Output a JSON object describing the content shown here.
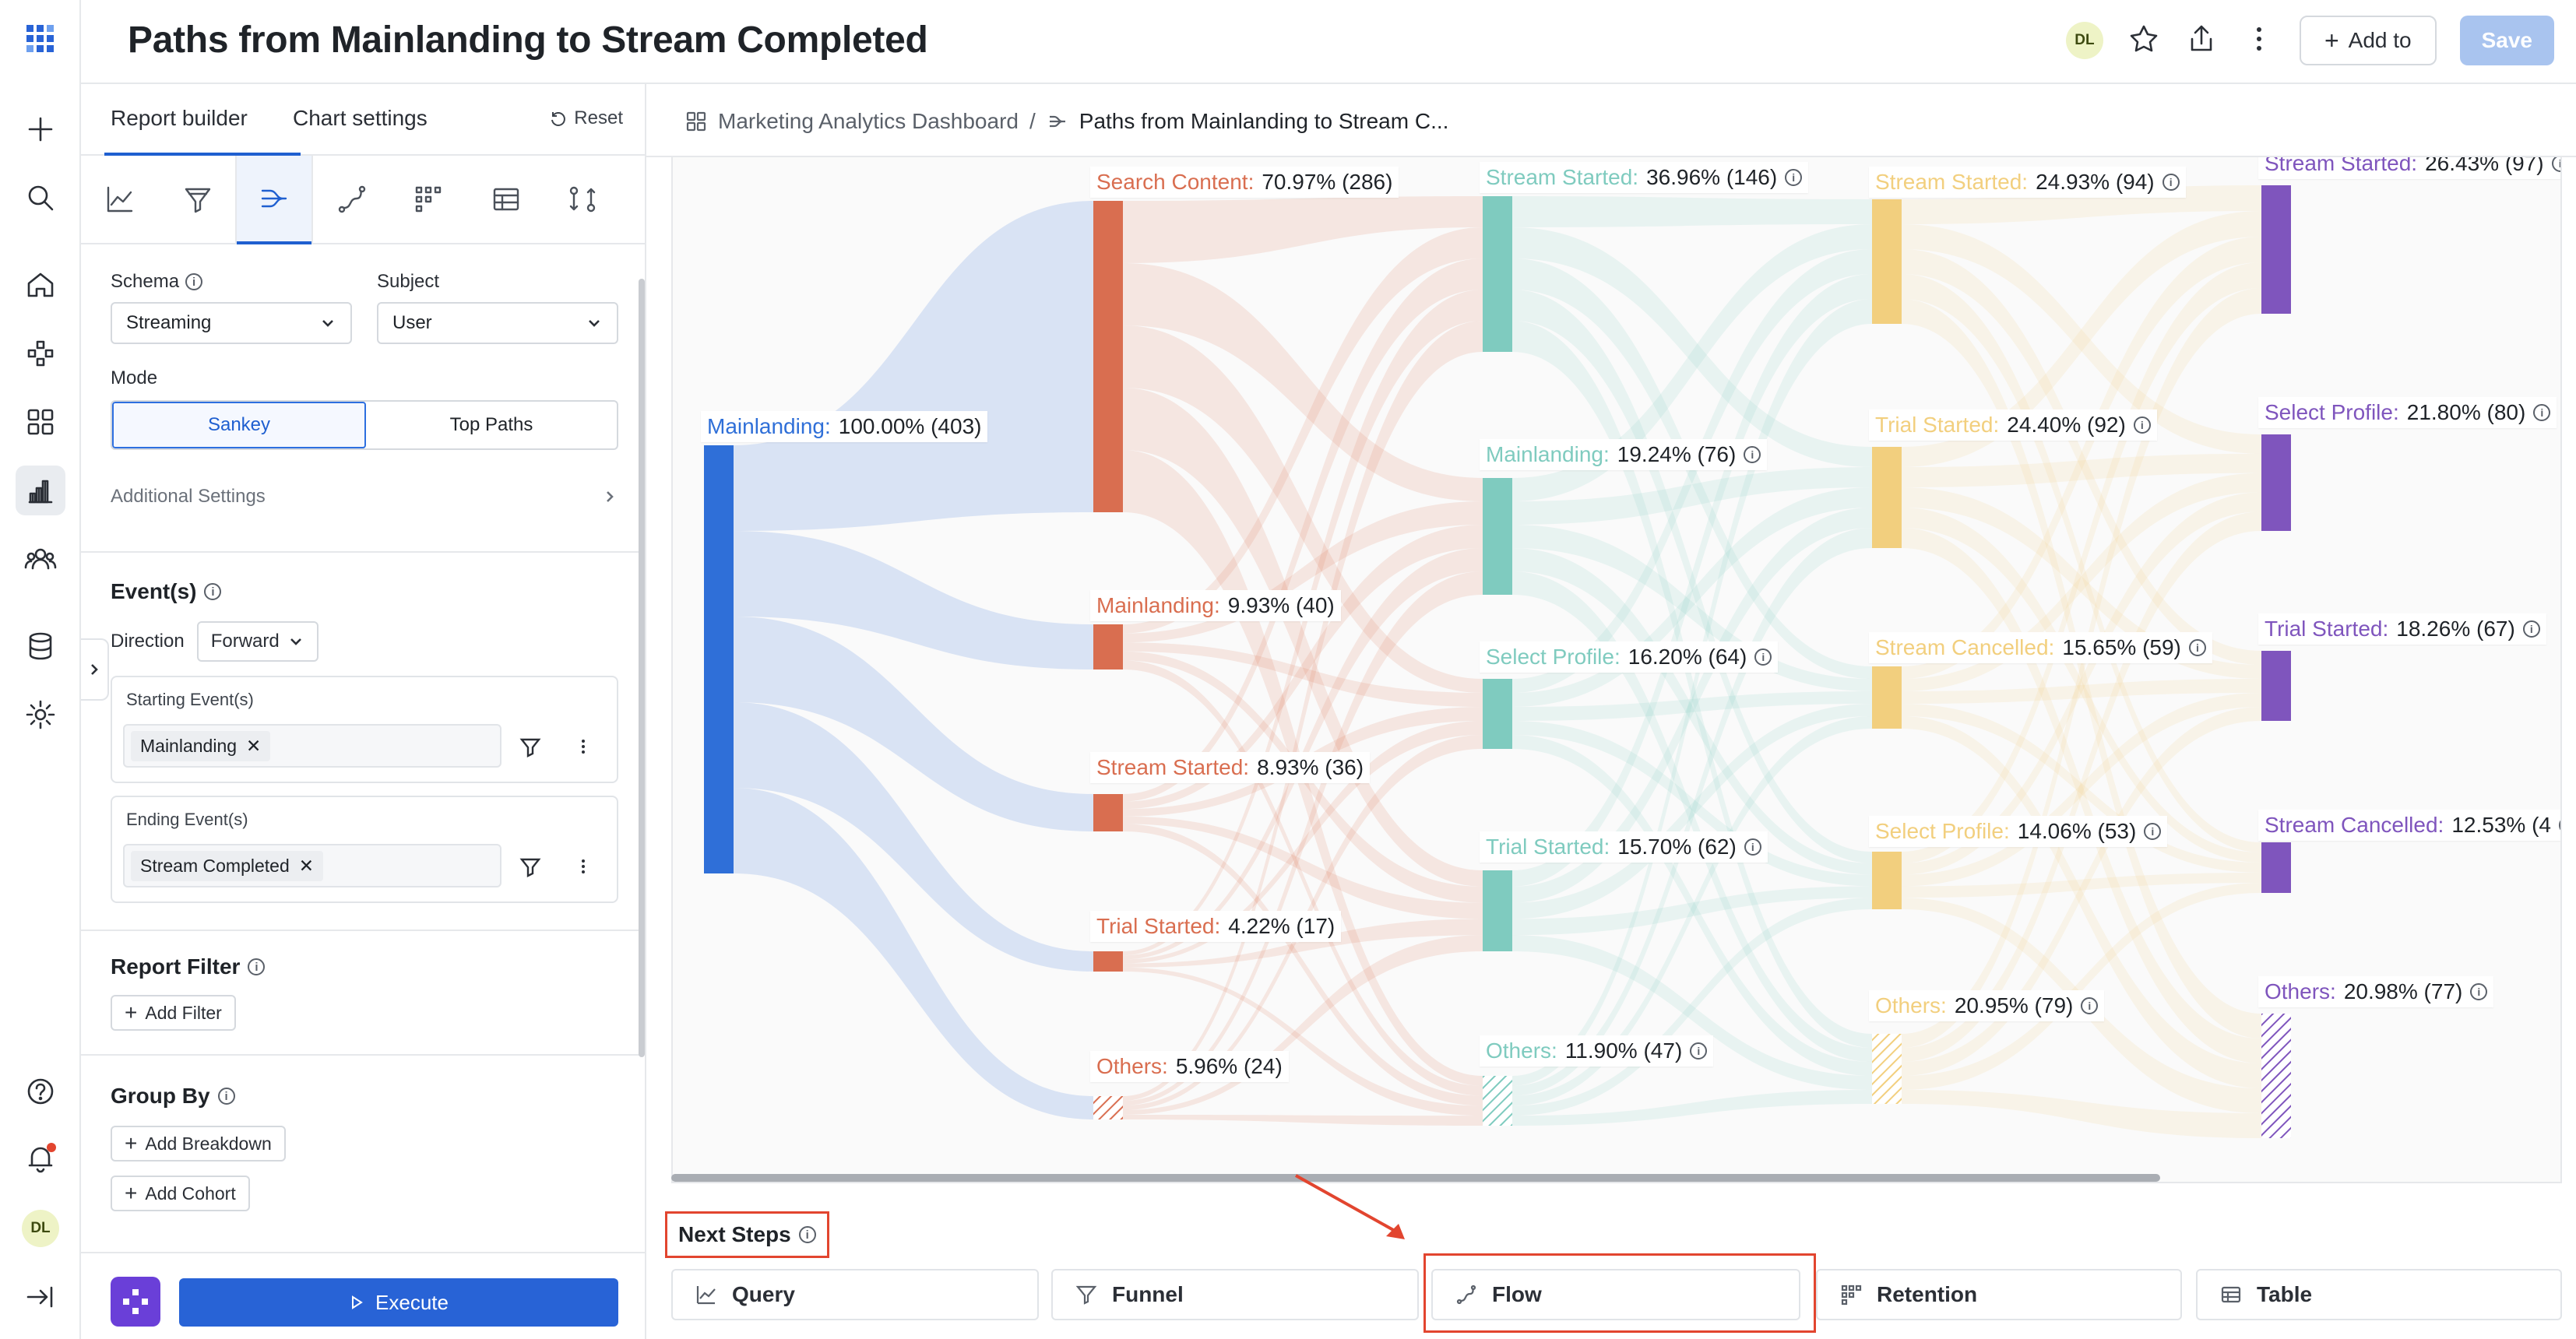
{
  "app": {
    "title": "Paths from Mainlanding to Stream Completed",
    "user_initials": "DL",
    "add_to_label": "Add to",
    "save_label": "Save"
  },
  "rail": {
    "items": [
      "apps-icon",
      "plus-icon",
      "search-icon",
      "home-icon",
      "connections-icon",
      "dashboards-icon",
      "reports-icon",
      "cohorts-icon",
      "data-icon",
      "settings-icon",
      "help-icon",
      "notifications-icon",
      "avatar",
      "collapse-icon"
    ],
    "active": "reports-icon",
    "notification_color": "#e2452f"
  },
  "panel": {
    "tabs": [
      "Report builder",
      "Chart settings"
    ],
    "active_tab": "Report builder",
    "reset_label": "Reset",
    "icon_tabs": [
      "query-chart-icon",
      "funnel-icon",
      "flow-icon",
      "path-icon",
      "retention-icon",
      "table-icon",
      "compare-icon"
    ],
    "active_icon_tab": "flow-icon",
    "schema_label": "Schema",
    "schema_value": "Streaming",
    "subject_label": "Subject",
    "subject_value": "User",
    "mode_label": "Mode",
    "mode_options": [
      "Sankey",
      "Top Paths"
    ],
    "mode_selected": "Sankey",
    "additional_settings": "Additional Settings",
    "events_title": "Event(s)",
    "direction_label": "Direction",
    "direction_value": "Forward",
    "starting_label": "Starting Event(s)",
    "starting_event": "Mainlanding",
    "ending_label": "Ending Event(s)",
    "ending_event": "Stream Completed",
    "report_filter_title": "Report Filter",
    "add_filter": "Add Filter",
    "group_by_title": "Group By",
    "add_breakdown": "Add Breakdown",
    "add_cohort": "Add Cohort",
    "execute_label": "Execute"
  },
  "breadcrumb": {
    "parent": "Marketing Analytics Dashboard",
    "separator": "/",
    "current": "Paths from Mainlanding to Stream C..."
  },
  "sankey": {
    "colors": {
      "step0": "#2f6fd8",
      "step1": "#d96e50",
      "step2": "#7fcbbf",
      "step3": "#f2cf7e",
      "step4": "#7f55bd"
    },
    "steps": [
      [
        {
          "name": "Mainlanding:",
          "value": "100.00% (403)"
        }
      ],
      [
        {
          "name": "Search Content:",
          "value": "70.97% (286)"
        },
        {
          "name": "Mainlanding:",
          "value": "9.93% (40)"
        },
        {
          "name": "Stream Started:",
          "value": "8.93% (36)"
        },
        {
          "name": "Trial Started:",
          "value": "4.22% (17)"
        },
        {
          "name": "Others:",
          "value": "5.96% (24)"
        }
      ],
      [
        {
          "name": "Stream Started:",
          "value": "36.96% (146)"
        },
        {
          "name": "Mainlanding:",
          "value": "19.24% (76)"
        },
        {
          "name": "Select Profile:",
          "value": "16.20% (64)"
        },
        {
          "name": "Trial Started:",
          "value": "15.70% (62)"
        },
        {
          "name": "Others:",
          "value": "11.90% (47)"
        }
      ],
      [
        {
          "name": "Stream Started:",
          "value": "24.93% (94)"
        },
        {
          "name": "Trial Started:",
          "value": "24.40% (92)"
        },
        {
          "name": "Stream Cancelled:",
          "value": "15.65% (59)"
        },
        {
          "name": "Select Profile:",
          "value": "14.06% (53)"
        },
        {
          "name": "Others:",
          "value": "20.95% (79)"
        }
      ],
      [
        {
          "name": "Stream Started:",
          "value": "26.43% (97)"
        },
        {
          "name": "Select Profile:",
          "value": "21.80% (80)"
        },
        {
          "name": "Trial Started:",
          "value": "18.26% (67)"
        },
        {
          "name": "Stream Cancelled:",
          "value": "12.53% (4"
        },
        {
          "name": "Others:",
          "value": "20.98% (77)"
        }
      ]
    ]
  },
  "next_steps": {
    "title": "Next Steps",
    "buttons": [
      {
        "label": "Query",
        "icon": "query-chart-icon"
      },
      {
        "label": "Funnel",
        "icon": "funnel-icon"
      },
      {
        "label": "Flow",
        "icon": "flow-icon"
      },
      {
        "label": "Retention",
        "icon": "retention-icon"
      },
      {
        "label": "Table",
        "icon": "table-icon"
      }
    ],
    "highlight_color": "#e2452f"
  }
}
